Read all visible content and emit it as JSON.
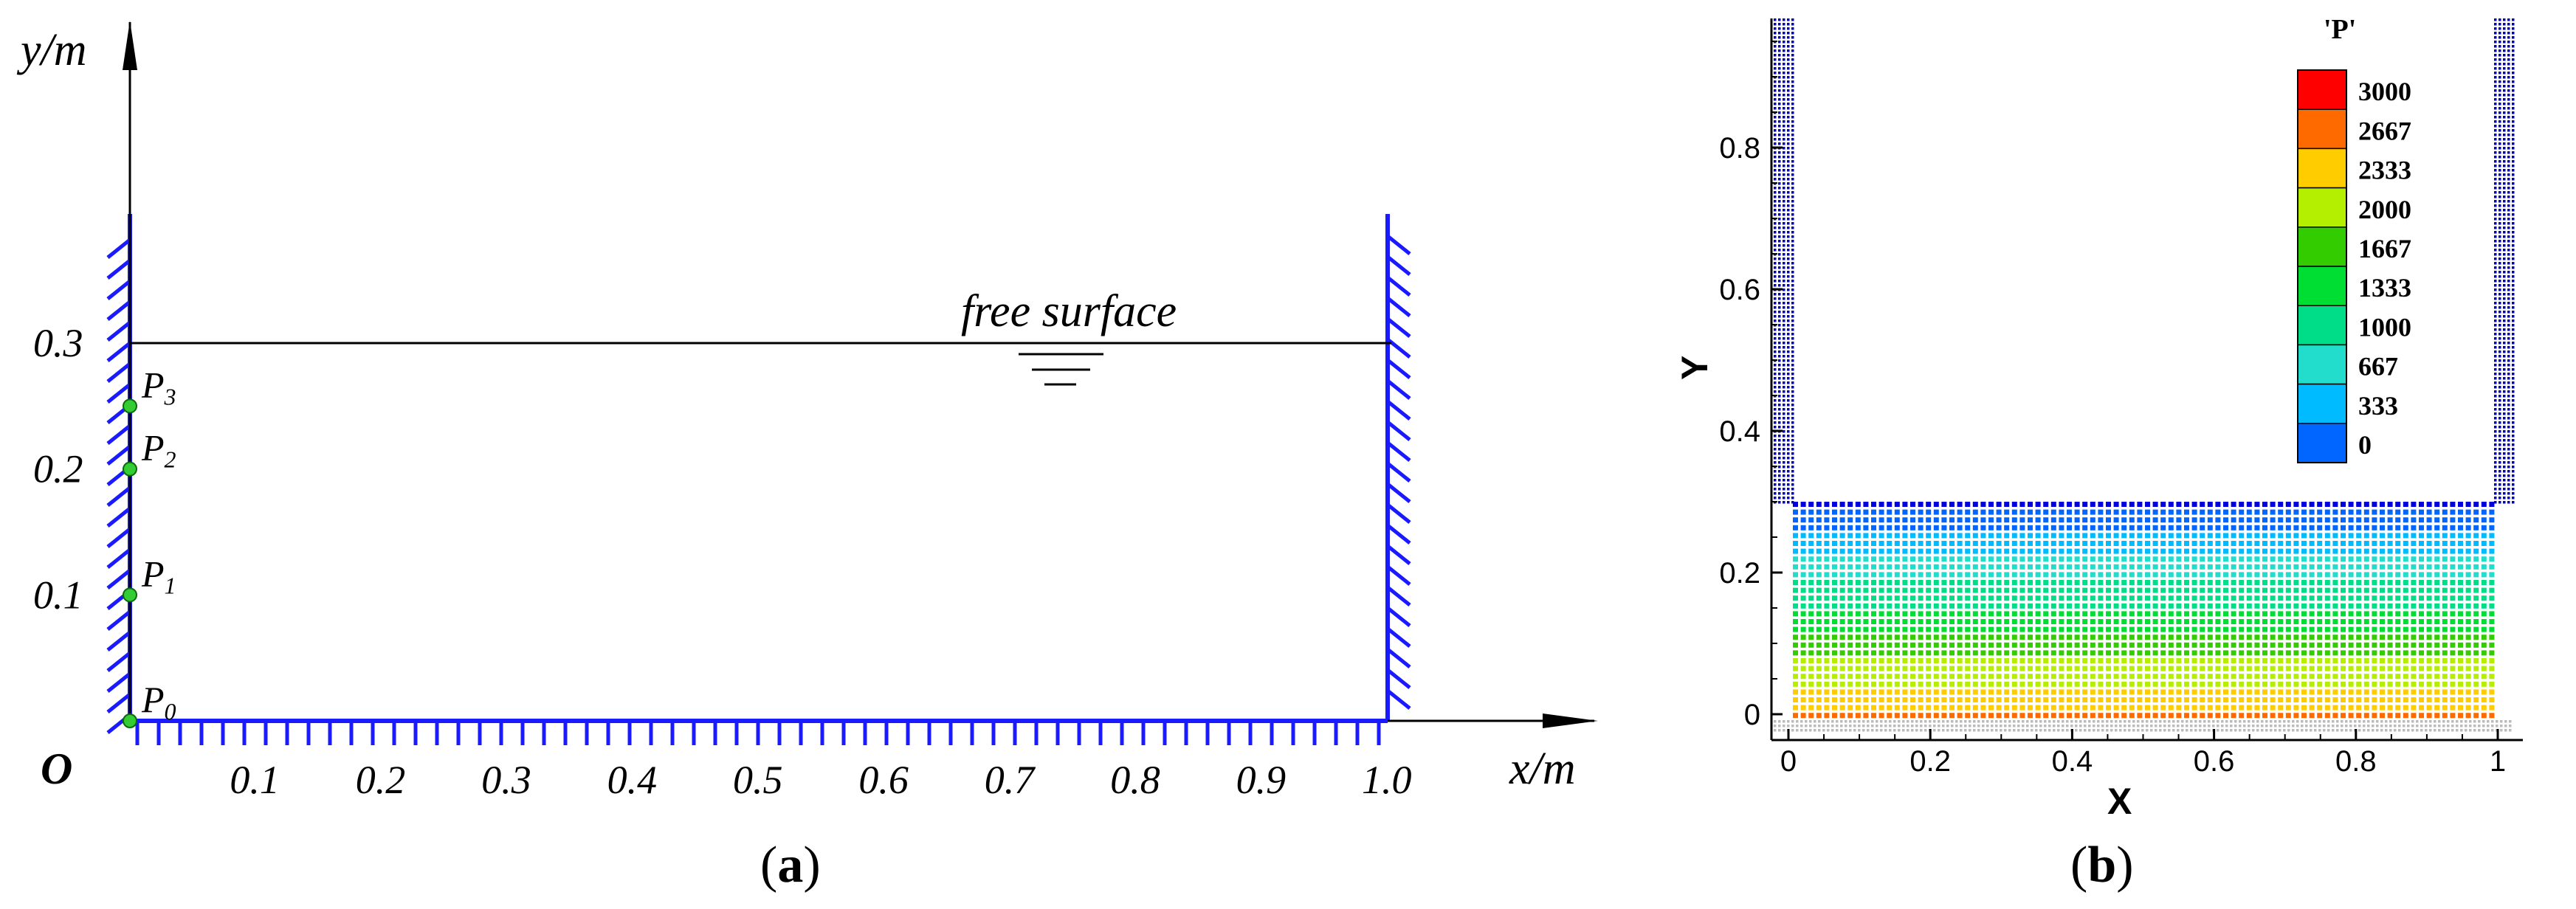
{
  "panel_a": {
    "caption_letter": "a",
    "axis_y_label": "y/m",
    "axis_x_label": "x/m",
    "origin_label": "O",
    "x_ticks": [
      "0.1",
      "0.2",
      "0.3",
      "0.4",
      "0.5",
      "0.6",
      "0.7",
      "0.8",
      "0.9",
      "1.0"
    ],
    "y_ticks": [
      "0.1",
      "0.2",
      "0.3"
    ],
    "free_surface_label": "free surface",
    "probes": [
      {
        "base": "P",
        "sub": "0",
        "y": 0.0
      },
      {
        "base": "P",
        "sub": "1",
        "y": 0.1
      },
      {
        "base": "P",
        "sub": "2",
        "y": 0.2
      },
      {
        "base": "P",
        "sub": "3",
        "y": 0.25
      }
    ],
    "water_depth": 0.3,
    "tank_width": 1.0,
    "colors": {
      "wall": "#1a1aff",
      "probe": "#33cc33",
      "line": "#000000"
    }
  },
  "panel_b": {
    "caption_letter": "b",
    "x_title": "X",
    "y_title": "Y",
    "x_ticks": [
      "0",
      "0.2",
      "0.4",
      "0.6",
      "0.8",
      "1"
    ],
    "y_ticks": [
      "0",
      "0.2",
      "0.4",
      "0.6",
      "0.8"
    ],
    "legend_title": "'P'",
    "legend_levels": [
      "3000",
      "2667",
      "2333",
      "2000",
      "1667",
      "1333",
      "1000",
      "667",
      "333",
      "0"
    ],
    "legend_colors": [
      "#ff0000",
      "#ff6a00",
      "#ffcc00",
      "#b4ee00",
      "#33cc00",
      "#00dd33",
      "#00dd88",
      "#22ddcc",
      "#00bbff",
      "#0066ff",
      "#0000dd"
    ]
  }
}
